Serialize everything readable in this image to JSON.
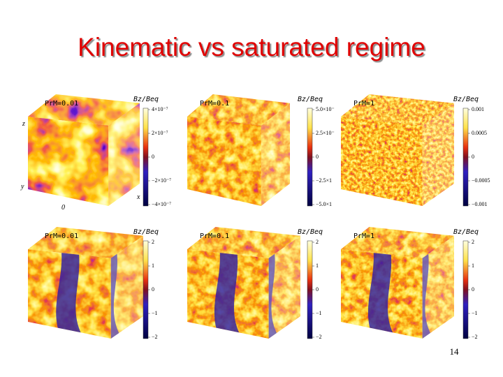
{
  "title": "Kinematic vs saturated regime",
  "panels": [
    {
      "label": "PrM=0.01",
      "colorbar_title": "Bz/Beq",
      "ticks": [
        "4×10⁻⁷",
        "2×10⁻⁷",
        "0",
        "−2×10⁻⁷",
        "−4×10⁻⁷"
      ],
      "axes": [
        "z",
        "y",
        "0",
        "x"
      ]
    },
    {
      "label": "PrM=0.1",
      "colorbar_title": "Bz/Beq",
      "ticks": [
        "5.0×10⁻",
        "2.5×10⁻",
        "0",
        "−2.5×1",
        "−5.0×1"
      ]
    },
    {
      "label": "PrM=1",
      "colorbar_title": "Bz/Beq",
      "ticks": [
        "0.001",
        "0.0005",
        "0",
        "−0.0005",
        "−0.001"
      ]
    },
    {
      "label": "PrM=0.01",
      "colorbar_title": "Bz/Beq",
      "ticks": [
        "2",
        "1",
        "0",
        "−1",
        "−2"
      ]
    },
    {
      "label": "PrM=0.1",
      "colorbar_title": "Bz/Beq",
      "ticks": [
        "2",
        "1",
        "0",
        "−1",
        "−2"
      ]
    },
    {
      "label": "PrM=1",
      "colorbar_title": "Bz/Beq",
      "ticks": [
        "2",
        "1",
        "0",
        "−1",
        "−2"
      ]
    }
  ],
  "page_number": "14"
}
